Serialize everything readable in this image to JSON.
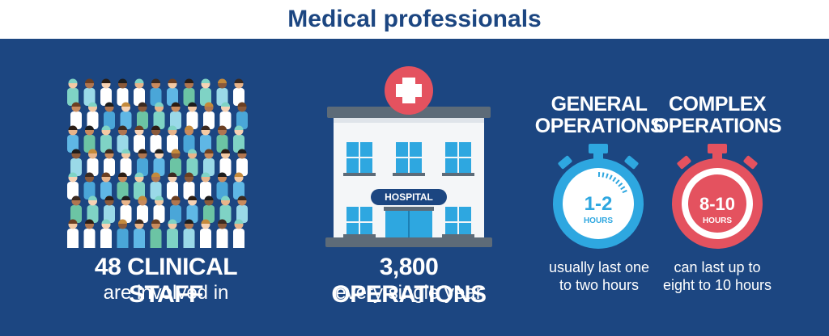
{
  "header": {
    "title": "Medical professionals"
  },
  "colors": {
    "background": "#1c4681",
    "header_bg": "#ffffff",
    "title": "#1c4681",
    "general_timer": "#2ea7e0",
    "complex_timer": "#e4525f",
    "hospital_cross": "#e4525f"
  },
  "staff": {
    "icon": "crowd-of-medical-staff-icon",
    "headline": "48 CLINICAL STAFF",
    "subline": "are involved in"
  },
  "operations": {
    "icon": "hospital-building-icon",
    "building_sign": "HOSPITAL",
    "headline": "3,800 OPERATIONS",
    "subline": "every single year"
  },
  "general": {
    "icon": "stopwatch-icon",
    "title_line1": "GENERAL",
    "title_line2": "OPERATIONS",
    "timer_value": "1-2",
    "timer_unit": "HOURS",
    "desc_line1": "usually last one",
    "desc_line2": "to two hours"
  },
  "complex": {
    "icon": "stopwatch-icon",
    "title_line1": "COMPLEX",
    "title_line2": "OPERATIONS",
    "timer_value": "8-10",
    "timer_unit": "HOURS",
    "desc_line1": "can last up to",
    "desc_line2": "eight to 10 hours"
  }
}
